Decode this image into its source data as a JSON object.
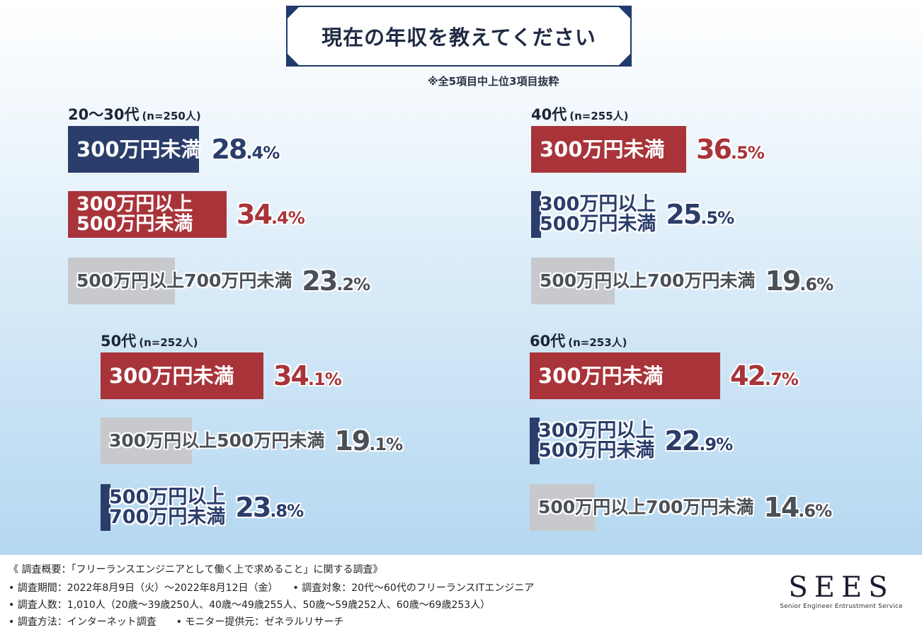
{
  "title": "現在の年収を教えてください",
  "note": "※全5項目中上位3項目抜粋",
  "colors": {
    "navy": "#2a3d6b",
    "red": "#a8343a",
    "gray": "#c7c9cc"
  },
  "chart_data": {
    "type": "bar",
    "groups": [
      {
        "age": "20〜30代",
        "n": "(n=250人)",
        "items": [
          {
            "label": "300万円未満",
            "value": 28.4,
            "int": "28",
            "dec": ".4%",
            "color": "navy",
            "style": "fill"
          },
          {
            "label": "300万円以上\n500万円未満",
            "value": 34.4,
            "int": "34",
            "dec": ".4%",
            "color": "red",
            "style": "fill"
          },
          {
            "label": "500万円以上700万円未満",
            "value": 23.2,
            "int": "23",
            "dec": ".2%",
            "color": "gray",
            "style": "fill"
          }
        ]
      },
      {
        "age": "40代",
        "n": "(n=255人)",
        "items": [
          {
            "label": "300万円未満",
            "value": 36.5,
            "int": "36",
            "dec": ".5%",
            "color": "red",
            "style": "fill"
          },
          {
            "label": "300万円以上\n500万円未満",
            "value": 25.5,
            "int": "25",
            "dec": ".5%",
            "color": "navy",
            "style": "outline"
          },
          {
            "label": "500万円以上700万円未満",
            "value": 19.6,
            "int": "19",
            "dec": ".6%",
            "color": "gray",
            "style": "fill"
          }
        ]
      },
      {
        "age": "50代",
        "n": "(n=252人)",
        "items": [
          {
            "label": "300万円未満",
            "value": 34.1,
            "int": "34",
            "dec": ".1%",
            "color": "red",
            "style": "fill"
          },
          {
            "label": "300万円以上500万円未満",
            "value": 19.1,
            "int": "19",
            "dec": ".1%",
            "color": "gray",
            "style": "fill"
          },
          {
            "label": "500万円以上\n700万円未満",
            "value": 23.8,
            "int": "23",
            "dec": ".8%",
            "color": "navy",
            "style": "outline"
          }
        ]
      },
      {
        "age": "60代",
        "n": "(n=253人)",
        "items": [
          {
            "label": "300万円未満",
            "value": 42.7,
            "int": "42",
            "dec": ".7%",
            "color": "red",
            "style": "fill"
          },
          {
            "label": "300万円以上\n500万円未満",
            "value": 22.9,
            "int": "22",
            "dec": ".9%",
            "color": "navy",
            "style": "outline"
          },
          {
            "label": "500万円以上700万円未満",
            "value": 14.6,
            "int": "14",
            "dec": ".6%",
            "color": "gray",
            "style": "fill"
          }
        ]
      }
    ]
  },
  "footer": {
    "line1": "《 調査概要：「フリーランスエンジニアとして働く上で求めること」に関する調査》",
    "line2": "• 調査期間：2022年8月9日（火）〜2022年8月12日（金）　　• 調査対象：20代〜60代のフリーランスITエンジニア",
    "line3": "• 調査人数：1,010人（20歳〜39歳250人、40歳〜49歳255人、50歳〜59歳252人、60歳〜69歳253人）",
    "line4": "• 調査方法：インターネット調査　　• モニター提供元：ゼネラルリサーチ"
  },
  "logo": {
    "main": "SEES",
    "sub": "Senior Engineer Entrustment Service"
  }
}
